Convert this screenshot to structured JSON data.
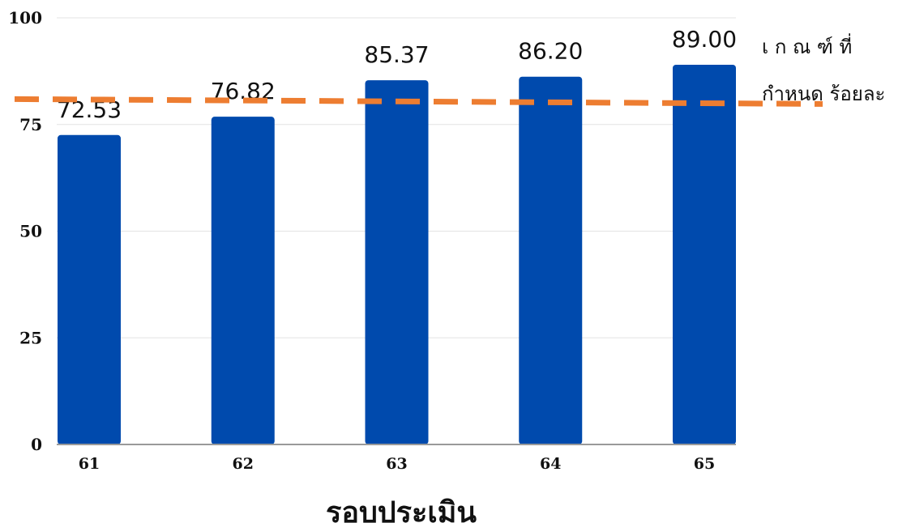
{
  "chart_data": {
    "type": "bar",
    "categories": [
      "61",
      "62",
      "63",
      "64",
      "65"
    ],
    "values": [
      72.53,
      76.82,
      85.37,
      86.2,
      89.0
    ],
    "value_labels": [
      "72.53",
      "76.82",
      "85.37",
      "86.20",
      "89.00"
    ],
    "xlabel": "รอบประเมิน",
    "ylabel": "",
    "ylim": [
      0,
      100
    ],
    "yticks": [
      "0",
      "25",
      "50",
      "75",
      "100"
    ],
    "grid": true,
    "bar_color": "#004aad",
    "reference_line": {
      "value": 80,
      "color": "#ed7d31",
      "style": "dashed",
      "label_line1": "เ ก ณ ฑ์ ที่",
      "label_line2": "กำหนด ร้อยละ"
    }
  }
}
